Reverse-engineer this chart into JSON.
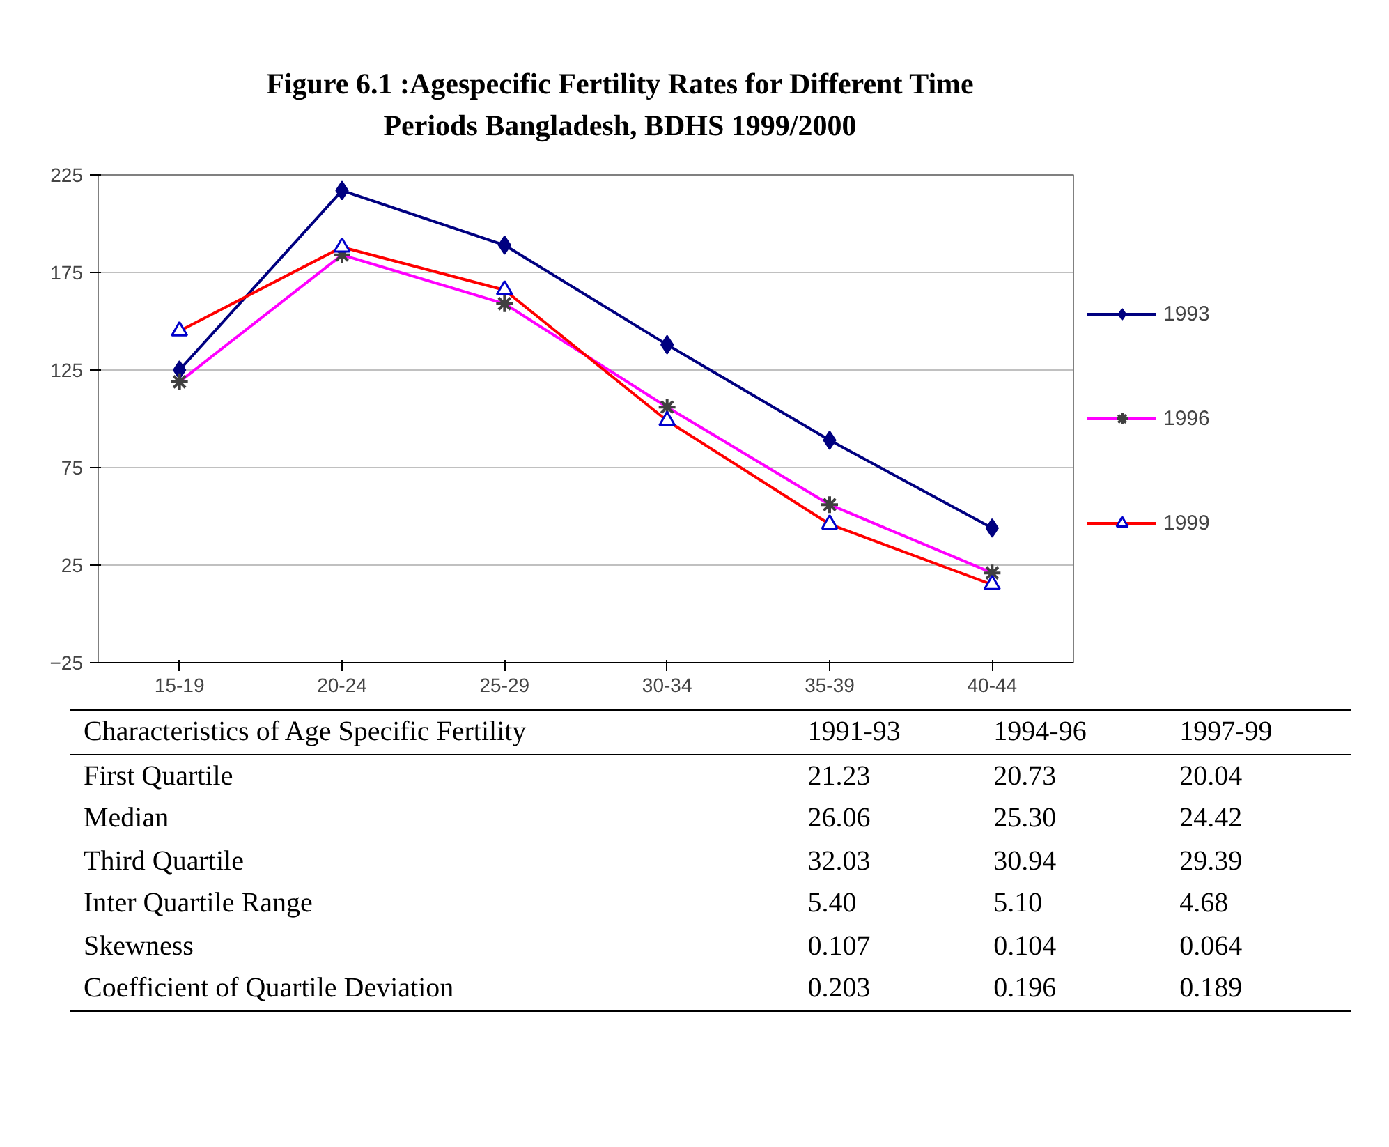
{
  "chart_data": {
    "type": "line",
    "title": "Figure 6.1 :Agespecific Fertility Rates  for Different Time Periods Bangladesh, BDHS 1999/2000",
    "categories": [
      "15-19",
      "20-24",
      "25-29",
      "30-34",
      "35-39",
      "40-44"
    ],
    "series": [
      {
        "name": "1993",
        "color": "#000080",
        "marker": "diamond",
        "values": [
          125,
          217,
          189,
          138,
          89,
          44
        ]
      },
      {
        "name": "1996",
        "color": "#ff00ff",
        "marker": "cross",
        "values": [
          119,
          184,
          159,
          106,
          56,
          21
        ]
      },
      {
        "name": "1999",
        "color": "#ff0000",
        "marker": "triangle",
        "values": [
          145,
          188,
          166,
          99,
          46,
          15
        ]
      }
    ],
    "ylim": [
      -25,
      225
    ],
    "yticks": [
      -25,
      25,
      75,
      125,
      175,
      225
    ],
    "grid": "y",
    "legend": "right",
    "line_style": "solid",
    "annotations": [
      "Characteristics of Age Specific Fertility",
      "1991-93",
      "1994-96",
      "1997-99",
      "First Quartile",
      "21.23",
      "20.73",
      "20.04",
      "Median",
      "26.06",
      "25.30",
      "24.42",
      "Third Quartile",
      "32.03",
      "30.94",
      "29.39",
      "Inter Quartile Range",
      "5.40",
      "5.10",
      "4.68",
      "Skewness",
      "0.107",
      "0.104",
      "0.064",
      "Coefficient of Quartile Deviation",
      "0.203",
      "0.196",
      "0.189"
    ]
  }
}
